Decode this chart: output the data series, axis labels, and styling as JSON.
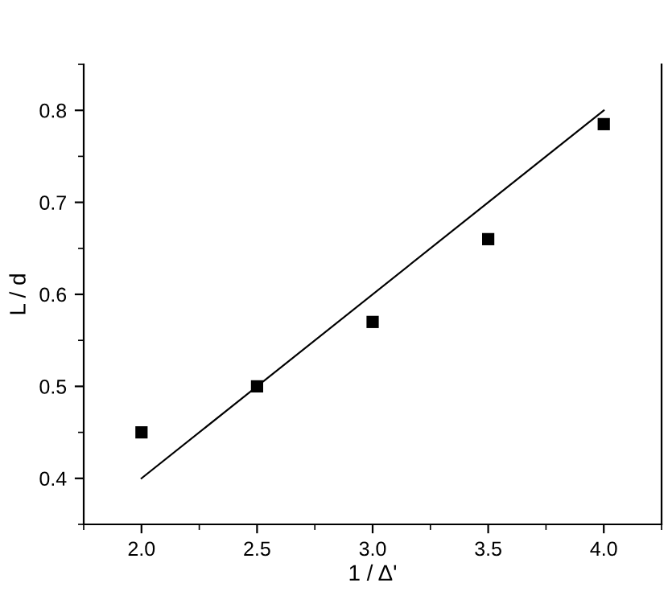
{
  "chart_data": {
    "type": "scatter",
    "xlabel": "1 / Δ'",
    "ylabel": "L / d",
    "xlim": [
      1.75,
      4.25
    ],
    "ylim": [
      0.35,
      0.85
    ],
    "xticks": [
      {
        "value": 2.0,
        "label": "2.0"
      },
      {
        "value": 2.5,
        "label": "2.5"
      },
      {
        "value": 3.0,
        "label": "3.0"
      },
      {
        "value": 3.5,
        "label": "3.5"
      },
      {
        "value": 4.0,
        "label": "4.0"
      }
    ],
    "yticks": [
      0.4,
      0.5,
      0.6,
      0.7,
      0.8
    ],
    "grid": false,
    "legend": false,
    "series": [
      {
        "color": "#000000",
        "marker": "square",
        "x": [
          2.0,
          2.5,
          3.0,
          3.5,
          4.0
        ],
        "values": [
          0.45,
          0.5,
          0.57,
          0.66,
          0.785
        ]
      },
      {
        "type": "line",
        "color": "#000000",
        "marker": "none",
        "line_style": "solid",
        "x": [
          2.0,
          4.0
        ],
        "values": [
          0.4,
          0.8
        ]
      }
    ]
  }
}
